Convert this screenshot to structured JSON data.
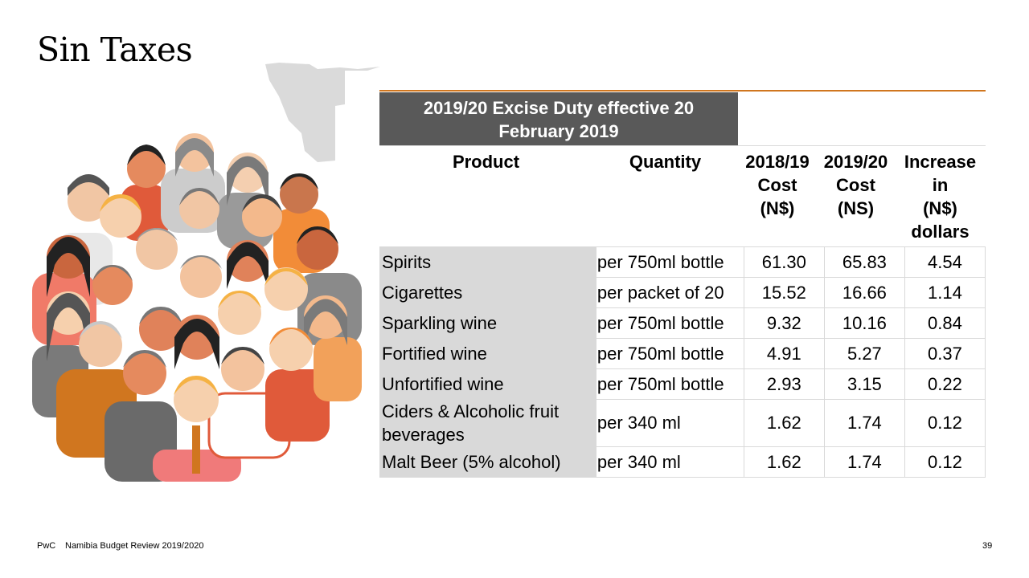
{
  "slide": {
    "title": "Sin Taxes"
  },
  "table": {
    "banner": [
      "2019/20 Excise Duty effective 20",
      "February 2019"
    ],
    "headers": {
      "product": "Product",
      "quantity": "Quantity",
      "cost_2018": [
        "2018/19",
        "Cost",
        "(N$)"
      ],
      "cost_2019": [
        "2019/20",
        "Cost",
        "(NS)"
      ],
      "increase": [
        "Increase",
        "in",
        "(N$)",
        "dollars"
      ]
    },
    "rows": [
      {
        "product": "Spirits",
        "quantity": "per 750ml bottle",
        "cost_2018": "61.30",
        "cost_2019": "65.83",
        "increase": "4.54"
      },
      {
        "product": "Cigarettes",
        "quantity": "per packet of 20",
        "cost_2018": "15.52",
        "cost_2019": "16.66",
        "increase": "1.14"
      },
      {
        "product": "Sparkling wine",
        "quantity": "per 750ml bottle",
        "cost_2018": "9.32",
        "cost_2019": "10.16",
        "increase": "0.84"
      },
      {
        "product": "Fortified wine",
        "quantity": "per 750ml bottle",
        "cost_2018": "4.91",
        "cost_2019": "5.27",
        "increase": "0.37"
      },
      {
        "product": "Unfortified wine",
        "quantity": "per 750ml bottle",
        "cost_2018": "2.93",
        "cost_2019": "3.15",
        "increase": "0.22"
      },
      {
        "product": "Ciders & Alcoholic fruit beverages",
        "quantity": "per 340 ml",
        "cost_2018": "1.62",
        "cost_2019": "1.74",
        "increase": "0.12"
      },
      {
        "product": "Malt Beer (5% alcohol)",
        "quantity": "per 340 ml",
        "cost_2018": "1.62",
        "cost_2019": "1.74",
        "increase": "0.12"
      }
    ]
  },
  "footer": {
    "brand": "PwC",
    "document": "Namibia Budget Review 2019/2020",
    "page_number": "39"
  },
  "colors": {
    "banner_bg": "#595959",
    "accent_rule": "#d0761f",
    "product_col_bg": "#d9d9d9"
  },
  "icons": [
    "namibia-map-icon",
    "crowd-of-people-illustration"
  ]
}
